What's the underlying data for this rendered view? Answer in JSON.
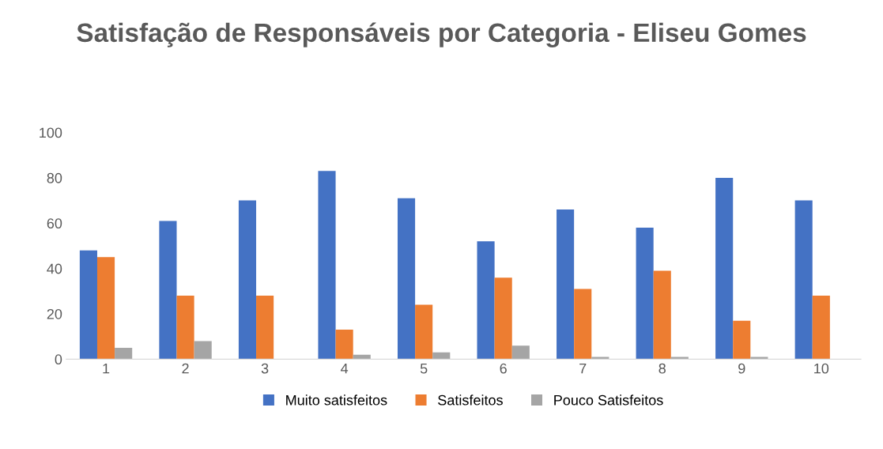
{
  "chart_data": {
    "type": "bar",
    "title": "Satisfação de Responsáveis por Categoria - Eliseu Gomes",
    "categories": [
      "1",
      "2",
      "3",
      "4",
      "5",
      "6",
      "7",
      "8",
      "9",
      "10"
    ],
    "series": [
      {
        "name": "Muito satisfeitos",
        "color": "#4472c4",
        "values": [
          48,
          61,
          70,
          83,
          71,
          52,
          66,
          58,
          80,
          70
        ]
      },
      {
        "name": "Satisfeitos",
        "color": "#ed7d31",
        "values": [
          45,
          28,
          28,
          13,
          24,
          36,
          31,
          39,
          17,
          28
        ]
      },
      {
        "name": "Pouco Satisfeitos",
        "color": "#a5a5a5",
        "values": [
          5,
          8,
          0,
          2,
          3,
          6,
          1,
          1,
          1,
          0
        ]
      }
    ],
    "ylim": [
      0,
      100
    ],
    "yticks": [
      0,
      20,
      40,
      60,
      80,
      100
    ],
    "grid": false,
    "legend": "bottom"
  }
}
